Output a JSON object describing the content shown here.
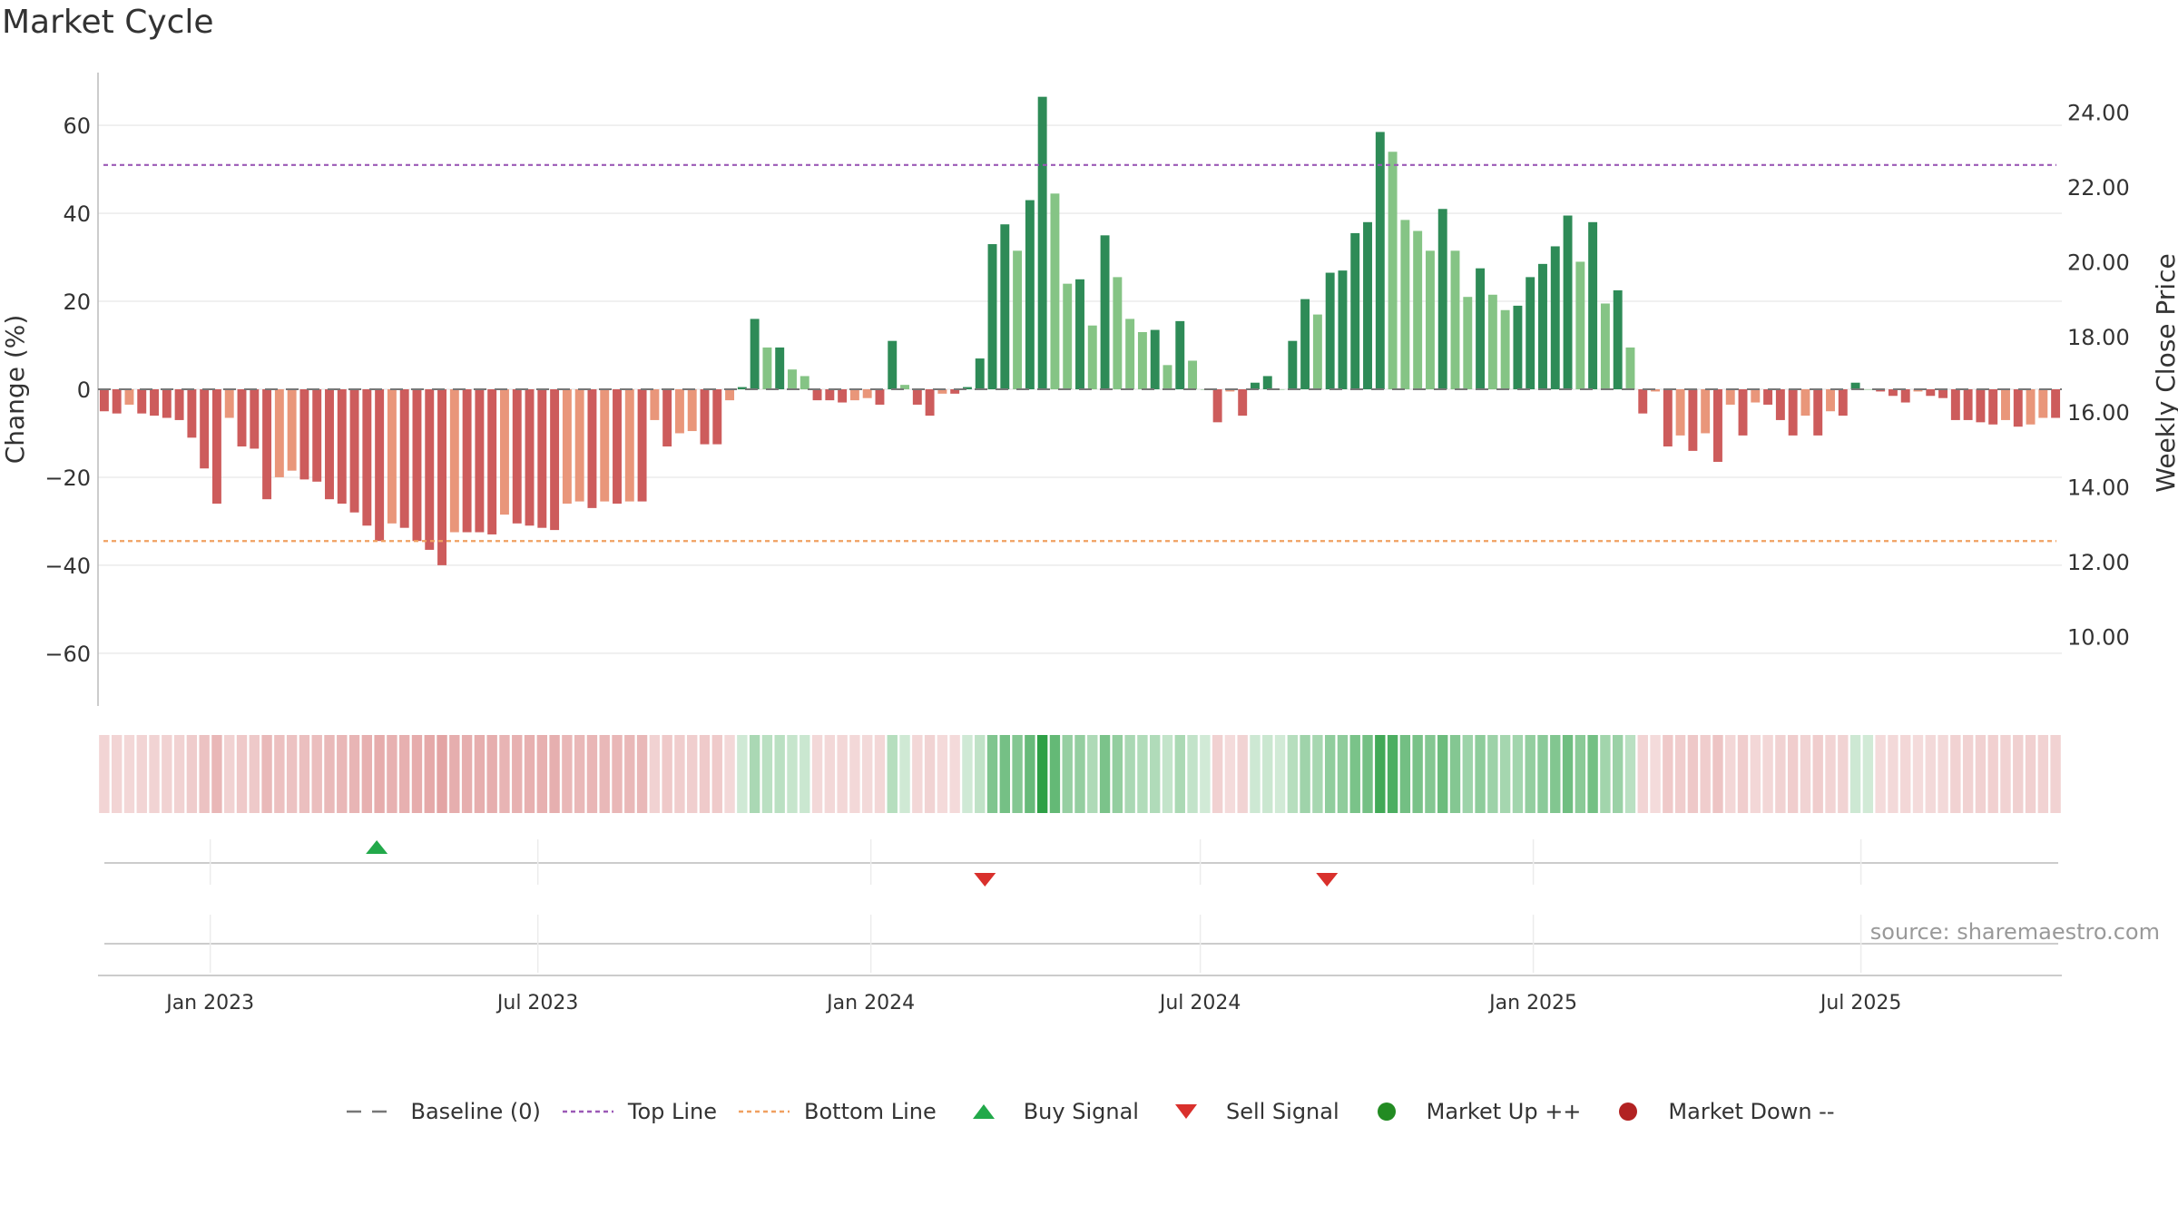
{
  "chart_data": {
    "type": "bar",
    "title": "Market Cycle",
    "ylabel_left": "Change (%)",
    "ylabel_right": "Weekly Close Price",
    "ylim_left": [
      -72,
      72
    ],
    "yticks_left": [
      -60,
      -40,
      -20,
      0,
      20,
      40,
      60
    ],
    "ylim_right": [
      8.14,
      25.06
    ],
    "yticks_right": [
      "10.00",
      "12.00",
      "14.00",
      "16.00",
      "18.00",
      "20.00",
      "22.00",
      "24.00"
    ],
    "x_start": "2022-10-31",
    "x_end": "2025-10-20",
    "xticks": [
      {
        "date": "2023-01-01",
        "label": "Jan 2023"
      },
      {
        "date": "2023-07-01",
        "label": "Jul 2023"
      },
      {
        "date": "2024-01-01",
        "label": "Jan 2024"
      },
      {
        "date": "2024-07-01",
        "label": "Jul 2024"
      },
      {
        "date": "2025-01-01",
        "label": "Jan 2025"
      },
      {
        "date": "2025-07-01",
        "label": "Jul 2025"
      }
    ],
    "top_line": 51,
    "bottom_line": -34.5,
    "values": [
      -5,
      -5.5,
      -3.5,
      -5.5,
      -6,
      -6.5,
      -7,
      -11,
      -18,
      -26,
      -6.5,
      -13,
      -13.5,
      -25,
      -20,
      -18.5,
      -20.5,
      -21,
      -25,
      -26,
      -28,
      -31,
      -34.5,
      -30.5,
      -31.5,
      -34.5,
      -36.5,
      -40,
      -32.5,
      -32.5,
      -32.5,
      -33,
      -28.5,
      -30.5,
      -31,
      -31.5,
      -32,
      -26,
      -25.5,
      -27,
      -25.5,
      -26,
      -25.5,
      -25.5,
      -7,
      -13,
      -10,
      -9.5,
      -12.5,
      -12.5,
      -2.5,
      0.5,
      16,
      9.5,
      9.5,
      4.5,
      3,
      -2.5,
      -2.5,
      -3,
      -2.5,
      -2,
      -3.5,
      11,
      1,
      -3.5,
      -6,
      -1,
      -1,
      0.5,
      7,
      33,
      37.5,
      31.5,
      43,
      66.5,
      44.5,
      24,
      25,
      14.5,
      35,
      25.5,
      16,
      13,
      13.5,
      5.5,
      15.5,
      6.5,
      0,
      -7.5,
      -0.5,
      -6,
      1.5,
      3,
      0,
      11,
      20.5,
      17,
      26.5,
      27,
      35.5,
      38,
      58.5,
      54,
      38.5,
      36,
      31.5,
      41,
      31.5,
      21,
      27.5,
      21.5,
      18,
      19,
      25.5,
      28.5,
      32.5,
      39.5,
      29,
      38,
      19.5,
      22.5,
      9.5,
      -5.5,
      -0.5,
      -13,
      -10.5,
      -14,
      -10,
      -16.5,
      -3.5,
      -10.5,
      -3,
      -3.5,
      -7,
      -10.5,
      -6,
      -10.5,
      -5,
      -6,
      1.5,
      0,
      -0.5,
      -1.5,
      -3,
      -0.5,
      -1.5,
      -2,
      -7,
      -7,
      -7.5,
      -8,
      -7,
      -8.5,
      -8,
      -6.5,
      -6.5
    ],
    "signals": [
      {
        "type": "buy",
        "date": "2023-04-03"
      },
      {
        "type": "sell",
        "date": "2024-03-04"
      },
      {
        "type": "sell",
        "date": "2024-09-09"
      }
    ],
    "colors": {
      "pos_strong": "#2e8b57",
      "pos_light": "#85c485",
      "neg_strong": "#cd5c5c",
      "neg_light": "#e9967a",
      "top_line": "#9b59b6",
      "bottom_line": "#f0a060",
      "buy": "#22a94a",
      "sell": "#d9302c",
      "market_up": "#228b22",
      "market_down": "#b22222",
      "baseline": "#777777"
    }
  },
  "source": "source: sharemaestro.com",
  "legend": [
    {
      "key": "baseline",
      "label": "Baseline (0)"
    },
    {
      "key": "top",
      "label": "Top Line"
    },
    {
      "key": "bottom",
      "label": "Bottom Line"
    },
    {
      "key": "buy",
      "label": "Buy Signal"
    },
    {
      "key": "sell",
      "label": "Sell Signal"
    },
    {
      "key": "up",
      "label": "Market Up ++"
    },
    {
      "key": "down",
      "label": "Market Down --"
    }
  ]
}
